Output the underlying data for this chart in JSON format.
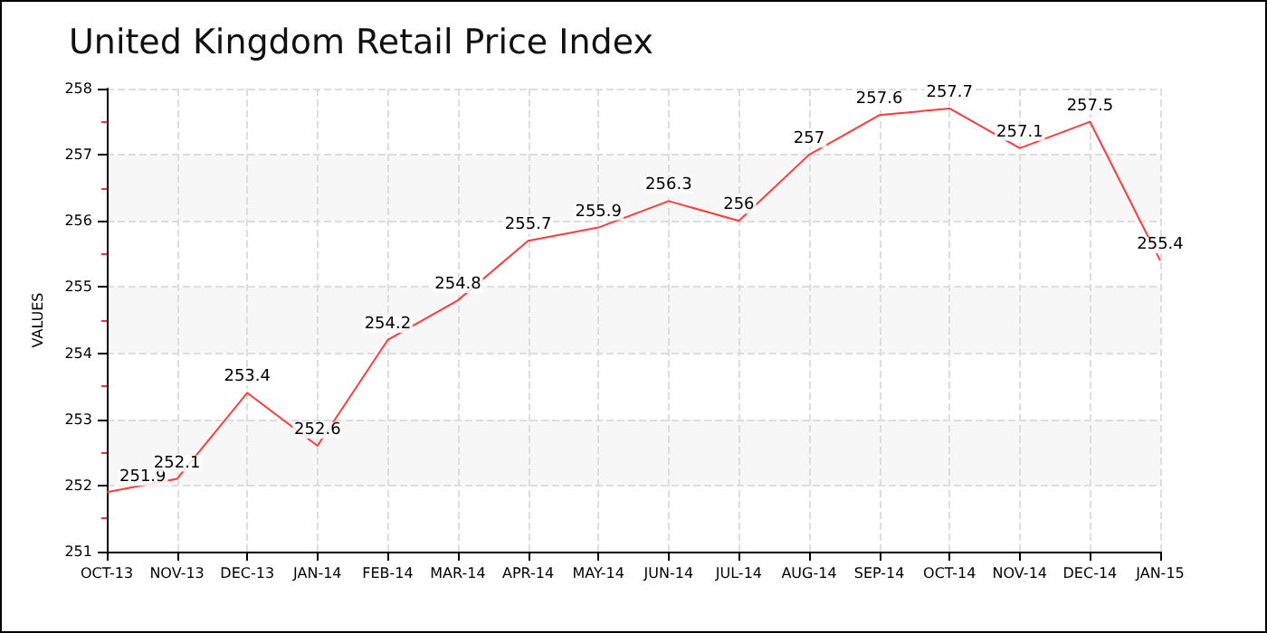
{
  "chart_data": {
    "type": "line",
    "title": "United Kingdom Retail Price Index",
    "ylabel": "VALUES",
    "categories": [
      "OCT-13",
      "NOV-13",
      "DEC-13",
      "JAN-14",
      "FEB-14",
      "MAR-14",
      "APR-14",
      "MAY-14",
      "JUN-14",
      "JUL-14",
      "AUG-14",
      "SEP-14",
      "OCT-14",
      "NOV-14",
      "DEC-14",
      "JAN-15"
    ],
    "series": [
      {
        "color": "#ff3b3b",
        "values": [
          251.9,
          252.1,
          253.4,
          252.6,
          254.2,
          254.8,
          255.7,
          255.9,
          256.3,
          256,
          257,
          257.6,
          257.7,
          257.1,
          257.5,
          255.4
        ]
      }
    ],
    "ylim": [
      251,
      258
    ],
    "yticks": [
      251,
      252,
      253,
      254,
      255,
      256,
      257,
      258
    ],
    "grid": true,
    "data_labels": true,
    "marker": "none",
    "line_style": "solid"
  }
}
